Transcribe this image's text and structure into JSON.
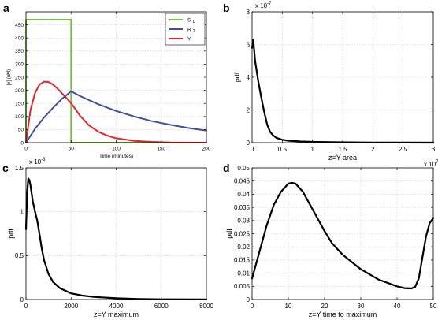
{
  "panels": [
    {
      "id": "a",
      "letter": "a",
      "type": "line",
      "xlabel": "Time (minutes)",
      "ylabel": "[x] (nM)",
      "xlim": [
        0,
        200
      ],
      "ylim": [
        0,
        500
      ],
      "xticks": [
        0,
        50,
        100,
        150,
        200
      ],
      "yticks": [
        0,
        50,
        100,
        150,
        200,
        250,
        300,
        350,
        400,
        450
      ],
      "grid": true,
      "legend": {
        "position": "top-right",
        "entries": [
          {
            "label_main": "S",
            "label_sub": "1",
            "color": "#77c043"
          },
          {
            "label_main": "R",
            "label_sub": "2",
            "color": "#3f4f9f"
          },
          {
            "label_main": "Y",
            "label_sub": "",
            "color": "#e3262a"
          }
        ]
      },
      "series": [
        {
          "name": "S1",
          "color": "#77c043",
          "x": [
            0,
            0,
            50,
            50,
            200
          ],
          "y": [
            0,
            470,
            470,
            0,
            0
          ]
        },
        {
          "name": "R2",
          "color": "#3f4f9f",
          "x": [
            0,
            10,
            20,
            30,
            40,
            50,
            60,
            80,
            100,
            120,
            140,
            160,
            180,
            200
          ],
          "y": [
            0,
            53,
            96,
            133,
            168,
            196,
            178,
            147,
            121,
            100,
            82,
            68,
            56,
            46
          ]
        },
        {
          "name": "Y",
          "color": "#e3262a",
          "x": [
            0,
            5,
            10,
            15,
            20,
            25,
            30,
            35,
            40,
            45,
            50,
            55,
            60,
            70,
            80,
            90,
            100,
            120,
            140,
            160,
            200
          ],
          "y": [
            0,
            125,
            190,
            222,
            233,
            232,
            222,
            206,
            188,
            170,
            151,
            127,
            102,
            66,
            42,
            27,
            17,
            7,
            3,
            1,
            0
          ]
        }
      ]
    },
    {
      "id": "b",
      "letter": "b",
      "type": "line",
      "xlabel": "z=Y area",
      "ylabel": "pdf",
      "xlim": [
        0,
        3
      ],
      "ylim": [
        0,
        8
      ],
      "xticks": [
        0,
        0.5,
        1,
        1.5,
        2,
        2.5,
        3
      ],
      "yticks": [
        0,
        2,
        4,
        6,
        8
      ],
      "x_exponent": "7",
      "y_exponent": "-7",
      "grid": true,
      "series": [
        {
          "color": "#000000",
          "x": [
            0,
            0.02,
            0.05,
            0.08,
            0.1,
            0.15,
            0.2,
            0.25,
            0.3,
            0.35,
            0.4,
            0.5,
            0.6,
            0.8,
            1.0,
            1.3,
            1.6,
            2.0,
            2.5,
            3.0
          ],
          "y": [
            5.8,
            6.3,
            5.0,
            4.3,
            3.8,
            2.8,
            1.9,
            1.1,
            0.65,
            0.45,
            0.3,
            0.18,
            0.12,
            0.07,
            0.05,
            0.03,
            0.02,
            0.01,
            0.005,
            0.002
          ]
        }
      ]
    },
    {
      "id": "c",
      "letter": "c",
      "type": "line",
      "xlabel": "z=Y maximum",
      "ylabel": "pdf",
      "xlim": [
        0,
        8000
      ],
      "ylim": [
        0,
        1.5
      ],
      "xticks": [
        0,
        2000,
        4000,
        6000,
        8000
      ],
      "yticks": [
        0,
        0.5,
        1,
        1.5
      ],
      "y_exponent": "-3",
      "grid": true,
      "series": [
        {
          "color": "#000000",
          "x": [
            0,
            50,
            100,
            150,
            200,
            300,
            400,
            500,
            600,
            700,
            800,
            1000,
            1200,
            1500,
            2000,
            2500,
            3000,
            4000,
            5000,
            6000,
            8000
          ],
          "y": [
            0.8,
            1.2,
            1.38,
            1.36,
            1.3,
            1.12,
            1.0,
            0.9,
            0.74,
            0.58,
            0.45,
            0.29,
            0.2,
            0.13,
            0.07,
            0.045,
            0.03,
            0.014,
            0.006,
            0.003,
            0.001
          ]
        }
      ]
    },
    {
      "id": "d",
      "letter": "d",
      "type": "line",
      "xlabel": "z=Y time to maximum",
      "ylabel": "pdf",
      "xlim": [
        0,
        50
      ],
      "ylim": [
        0,
        0.05
      ],
      "xticks": [
        0,
        10,
        20,
        30,
        40,
        50
      ],
      "yticks": [
        0,
        0.005,
        0.01,
        0.015,
        0.02,
        0.025,
        0.03,
        0.035,
        0.04,
        0.045,
        0.05
      ],
      "ytick_labels": [
        "0",
        "0.005",
        "0.01",
        "0.015",
        "0.02",
        "0.025",
        "0.03",
        "0.035",
        "0.04",
        "0.045",
        "0.05"
      ],
      "grid": true,
      "series": [
        {
          "color": "#000000",
          "x": [
            0,
            2,
            4,
            6,
            8,
            10,
            11,
            12,
            14,
            16,
            18,
            20,
            22,
            25,
            30,
            35,
            40,
            42,
            44,
            45,
            46,
            47,
            48,
            49,
            50
          ],
          "y": [
            0.008,
            0.018,
            0.028,
            0.036,
            0.041,
            0.044,
            0.0443,
            0.044,
            0.041,
            0.036,
            0.031,
            0.026,
            0.0215,
            0.017,
            0.0115,
            0.0075,
            0.005,
            0.0043,
            0.0042,
            0.0048,
            0.008,
            0.016,
            0.024,
            0.029,
            0.031
          ]
        }
      ]
    }
  ],
  "chart_data": [
    {
      "type": "line",
      "xlabel": "Time (minutes)",
      "ylabel": "[x] (nM)",
      "xlim": [
        0,
        200
      ],
      "ylim": [
        0,
        500
      ],
      "legend": [
        "S 1",
        "R 2",
        "Y"
      ]
    },
    {
      "type": "line",
      "xlabel": "z=Y area",
      "ylabel": "pdf",
      "xlim": [
        0,
        3
      ],
      "ylim": [
        0,
        8
      ]
    },
    {
      "type": "line",
      "xlabel": "z=Y maximum",
      "ylabel": "pdf",
      "xlim": [
        0,
        8000
      ],
      "ylim": [
        0,
        1.5
      ]
    },
    {
      "type": "line",
      "xlabel": "z=Y time to maximum",
      "ylabel": "pdf",
      "xlim": [
        0,
        50
      ],
      "ylim": [
        0,
        0.05
      ]
    }
  ]
}
